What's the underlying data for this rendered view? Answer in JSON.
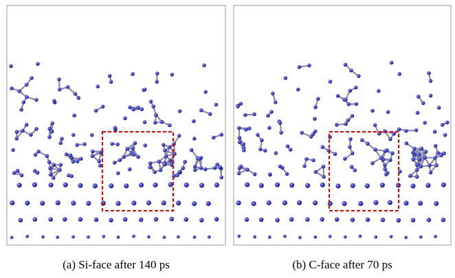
{
  "figure": {
    "panels": [
      {
        "caption": "(a) Si-face after 140 ps"
      },
      {
        "caption": "(b) C-face after 70 ps"
      }
    ]
  }
}
